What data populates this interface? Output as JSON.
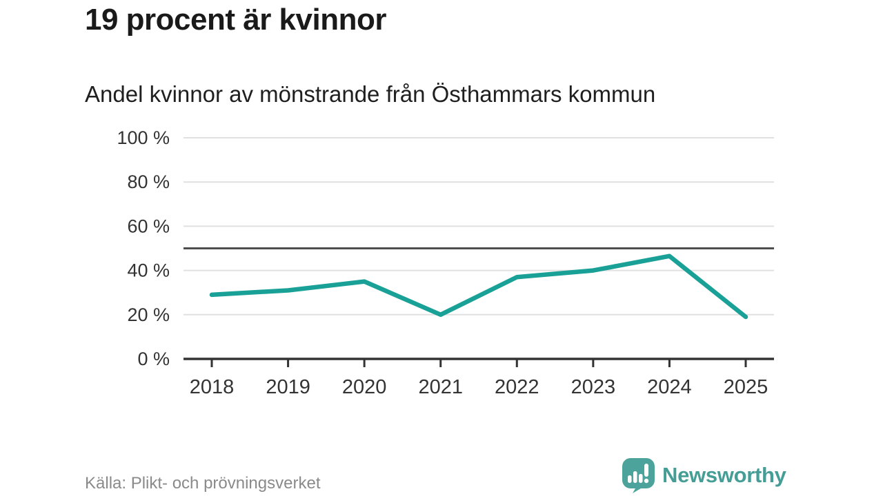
{
  "header": {
    "title": "19 procent är kvinnor",
    "subtitle": "Andel kvinnor av mönstrande från Östhammars kommun"
  },
  "footer": {
    "source": "Källa: Plikt- och prövningsverket",
    "brand": "Newsworthy"
  },
  "colors": {
    "line": "#1aa197",
    "grid": "#e0e0e0",
    "reference_line": "#4d4d4d",
    "axis": "#333333",
    "tick_label": "#333333",
    "source_text": "#8a8a8a",
    "brand": "#459e96",
    "logo_bubble": "#4ba39b",
    "background": "#ffffff"
  },
  "chart_data": {
    "type": "line",
    "title": "19 procent är kvinnor",
    "subtitle": "Andel kvinnor av mönstrande från Östhammars kommun",
    "categories": [
      "2018",
      "2019",
      "2020",
      "2021",
      "2022",
      "2023",
      "2024",
      "2025"
    ],
    "values": [
      29,
      31,
      35,
      20,
      37,
      40,
      46.5,
      19
    ],
    "xlabel": "",
    "ylabel": "",
    "ylim": [
      0,
      100
    ],
    "yticks": [
      0,
      20,
      40,
      60,
      80,
      100
    ],
    "ytick_suffix": " %",
    "reference_line": 50,
    "grid": "horizontal",
    "legend": "none",
    "source": "Källa: Plikt- och prövningsverket"
  }
}
